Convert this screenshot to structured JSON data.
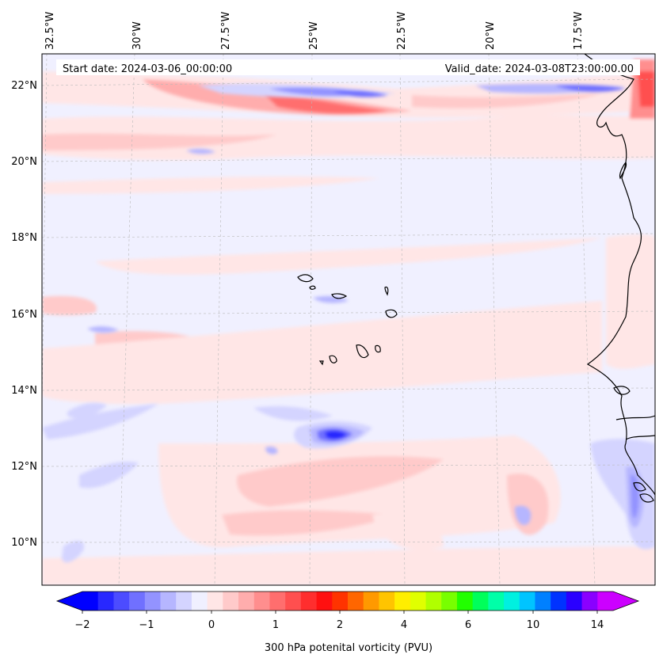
{
  "map": {
    "start_date": "Start date: 2024-03-06_00:00:00",
    "valid_date": "Valid_date: 2024-03-08T23:00:00.00",
    "lon_labels": [
      "32.5°W",
      "30°W",
      "27.5°W",
      "25°W",
      "22.5°W",
      "20°W",
      "17.5°W"
    ],
    "lat_labels": [
      "22°N",
      "20°N",
      "18°N",
      "16°N",
      "14°N",
      "12°N",
      "10°N"
    ],
    "colorbar": {
      "label": "300 hPa potenital vorticity (PVU)",
      "tick_labels": [
        "−2",
        "−1",
        "0",
        "1",
        "2",
        "4",
        "6",
        "10",
        "14"
      ],
      "colors": [
        "#0000ff",
        "#2828ff",
        "#4c4cff",
        "#7070ff",
        "#9393ff",
        "#b6b6ff",
        "#d4d4ff",
        "#f0f0ff",
        "#ffe6e6",
        "#ffcaca",
        "#ffadad",
        "#ff8e8e",
        "#ff6e6e",
        "#ff4f4f",
        "#ff2e2e",
        "#ff1010",
        "#ff3300",
        "#ff6600",
        "#ff9900",
        "#ffc400",
        "#ffee00",
        "#e0ff00",
        "#b0ff00",
        "#78ff00",
        "#22ff00",
        "#00ff5a",
        "#00ffa8",
        "#00f0e0",
        "#00c4ff",
        "#0080ff",
        "#0033ff",
        "#2a00ff",
        "#8a00ff",
        "#cc00ff"
      ],
      "under_color": "#0000ff",
      "over_color": "#cc00ff"
    }
  }
}
